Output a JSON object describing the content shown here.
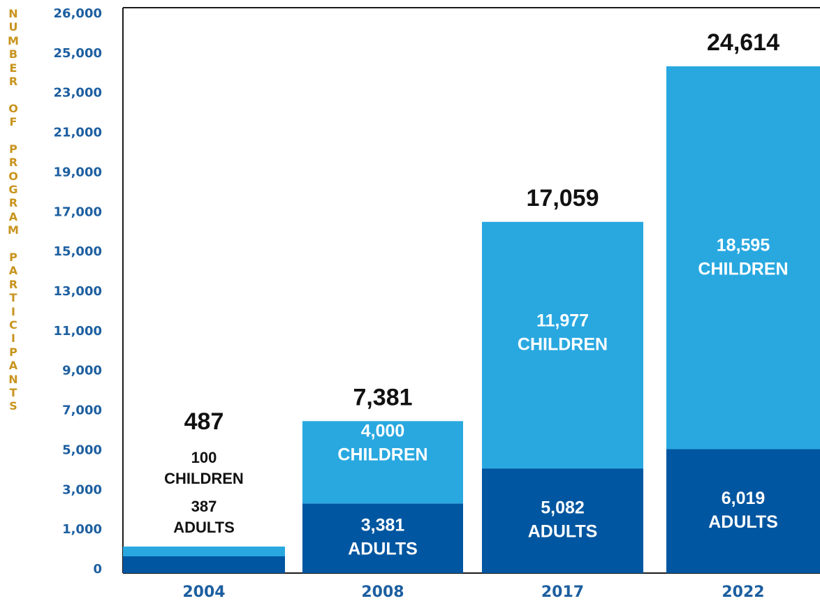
{
  "chart_data": {
    "type": "bar",
    "stacked": true,
    "ylabel": "NUMBER OF PROGRAM PARTICIPANTS",
    "yticks": [
      "0",
      "1,000",
      "3,000",
      "5,000",
      "7,000",
      "9,000",
      "11,000",
      "13,000",
      "15,000",
      "17,000",
      "19,000",
      "21,000",
      "23,000",
      "25,000",
      "26,000"
    ],
    "ylim": [
      0,
      26000
    ],
    "categories": [
      "2004",
      "2008",
      "2017",
      "2022"
    ],
    "totals": [
      487,
      7381,
      17059,
      24614
    ],
    "total_labels": [
      "487",
      "7,381",
      "17,059",
      "24,614"
    ],
    "series": [
      {
        "name": "ADULTS",
        "values": [
          387,
          3381,
          5082,
          6019
        ],
        "labels": [
          "387\nADULTS",
          "3,381\nADULTS",
          "5,082\nADULTS",
          "6,019\nADULTS"
        ]
      },
      {
        "name": "CHILDREN",
        "values": [
          100,
          4000,
          11977,
          18595
        ],
        "labels": [
          "100\nCHILDREN",
          "4,000\nCHILDREN",
          "11,977\nCHILDREN",
          "18,595\nCHILDREN"
        ]
      }
    ],
    "colors": {
      "adults": "#0056a0",
      "children": "#29a8e0",
      "axis_text": "#1d5fa0",
      "ylabel_text": "#c8941e"
    },
    "grid": false,
    "legend": "none"
  }
}
